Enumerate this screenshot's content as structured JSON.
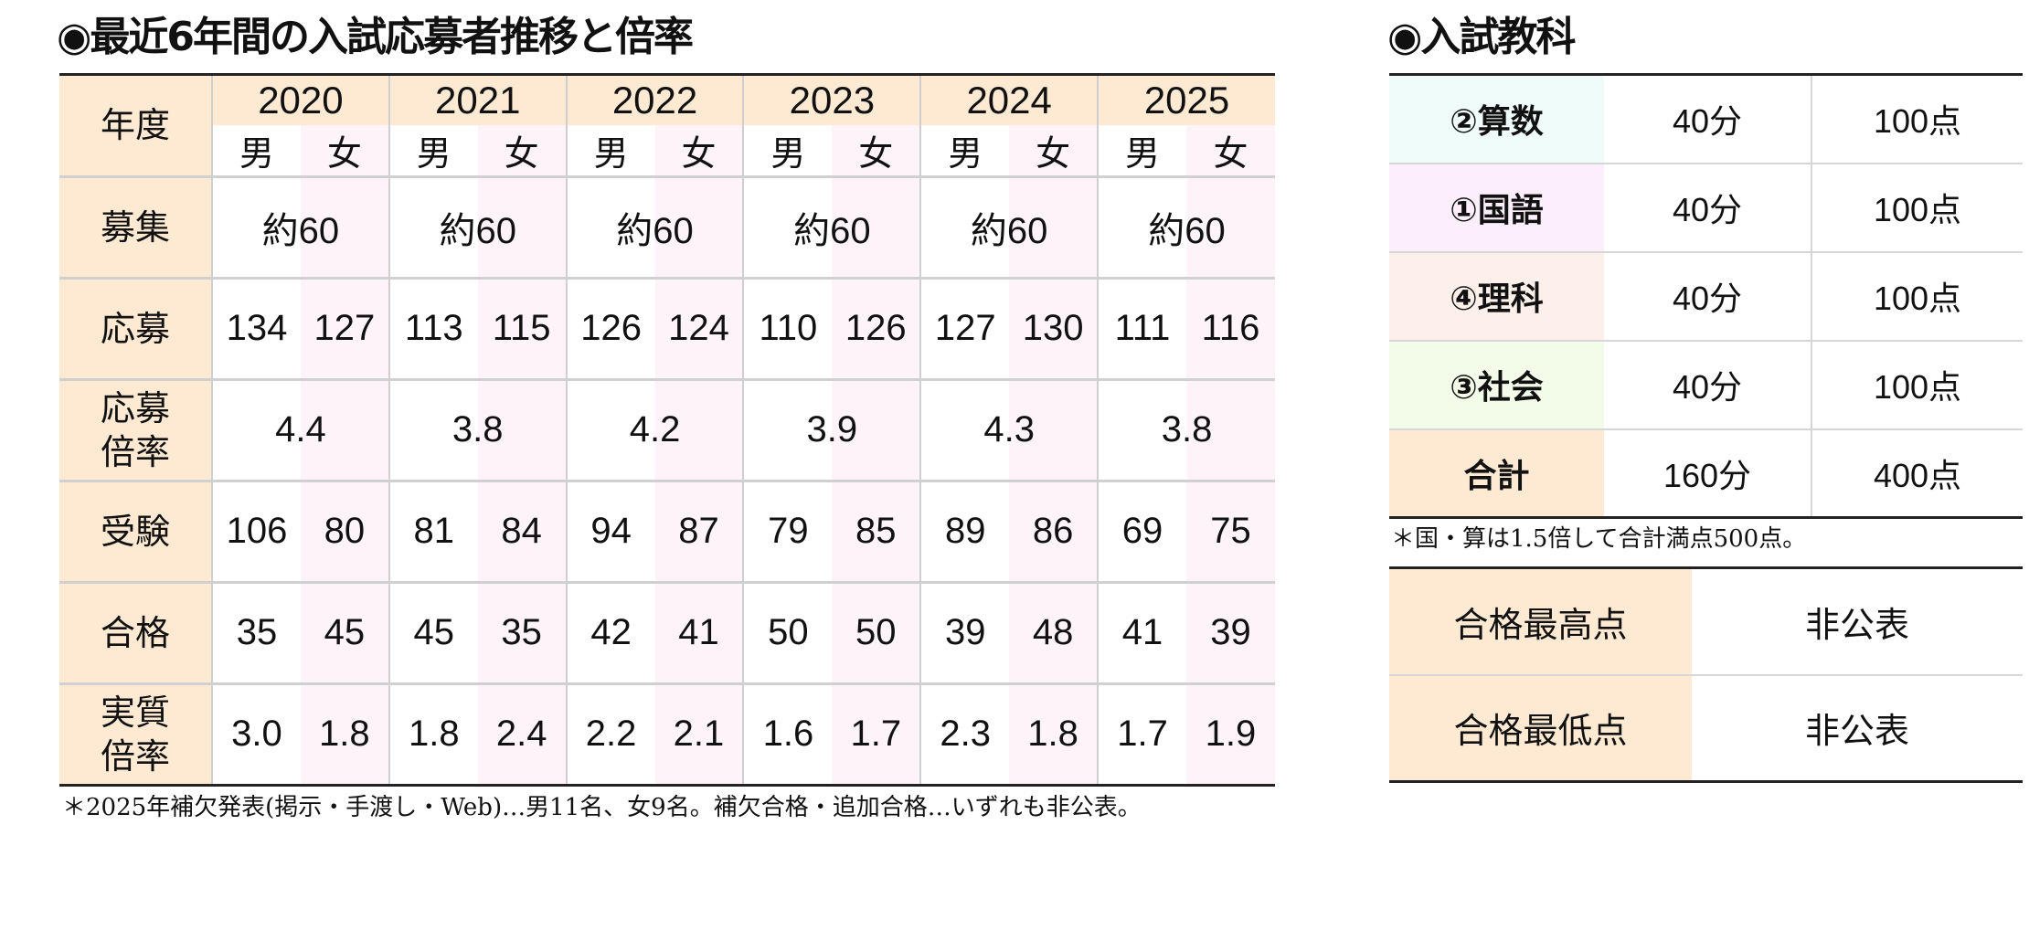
{
  "left_title": "◉最近6年間の入試応募者推移と倍率",
  "right_title": "◉入試教科",
  "exam_table": {
    "header_label": "年度",
    "male_label": "男",
    "female_label": "女",
    "row_labels": {
      "recruit": "募集",
      "applicants": "応募",
      "app_ratio": "応募倍率",
      "examinees": "受験",
      "passed": "合格",
      "real_ratio": "実質倍率"
    },
    "years": [
      {
        "year": "2020",
        "recruit": "約60",
        "applicants": [
          "134",
          "127"
        ],
        "app_ratio": "4.4",
        "examinees": [
          "106",
          "80"
        ],
        "passed": [
          "35",
          "45"
        ],
        "real_ratio": [
          "3.0",
          "1.8"
        ]
      },
      {
        "year": "2021",
        "recruit": "約60",
        "applicants": [
          "113",
          "115"
        ],
        "app_ratio": "3.8",
        "examinees": [
          "81",
          "84"
        ],
        "passed": [
          "45",
          "35"
        ],
        "real_ratio": [
          "1.8",
          "2.4"
        ]
      },
      {
        "year": "2022",
        "recruit": "約60",
        "applicants": [
          "126",
          "124"
        ],
        "app_ratio": "4.2",
        "examinees": [
          "94",
          "87"
        ],
        "passed": [
          "42",
          "41"
        ],
        "real_ratio": [
          "2.2",
          "2.1"
        ]
      },
      {
        "year": "2023",
        "recruit": "約60",
        "applicants": [
          "110",
          "126"
        ],
        "app_ratio": "3.9",
        "examinees": [
          "79",
          "85"
        ],
        "passed": [
          "50",
          "50"
        ],
        "real_ratio": [
          "1.6",
          "1.7"
        ]
      },
      {
        "year": "2024",
        "recruit": "約60",
        "applicants": [
          "127",
          "130"
        ],
        "app_ratio": "4.3",
        "examinees": [
          "89",
          "86"
        ],
        "passed": [
          "39",
          "48"
        ],
        "real_ratio": [
          "2.3",
          "1.8"
        ]
      },
      {
        "year": "2025",
        "recruit": "約60",
        "applicants": [
          "111",
          "116"
        ],
        "app_ratio": "3.8",
        "examinees": [
          "69",
          "75"
        ],
        "passed": [
          "41",
          "39"
        ],
        "real_ratio": [
          "1.7",
          "1.9"
        ]
      }
    ],
    "note": "＊2025年補欠発表(掲示・手渡し・Web)…男11名、女9名。補欠合格・追加合格…いずれも非公表。"
  },
  "subjects": {
    "rows": [
      {
        "name": "②算数",
        "time": "40分",
        "points": "100点",
        "color": "#effcf9"
      },
      {
        "name": "①国語",
        "time": "40分",
        "points": "100点",
        "color": "#fdeefb"
      },
      {
        "name": "④理科",
        "time": "40分",
        "points": "100点",
        "color": "#fdf0ea"
      },
      {
        "name": "③社会",
        "time": "40分",
        "points": "100点",
        "color": "#f3fce8"
      },
      {
        "name": "合計",
        "time": "160分",
        "points": "400点",
        "color": "#fee9d3"
      }
    ],
    "note": "＊国・算は1.5倍して合計満点500点。"
  },
  "scores": [
    {
      "label": "合格最高点",
      "value": "非公表"
    },
    {
      "label": "合格最低点",
      "value": "非公表"
    }
  ]
}
